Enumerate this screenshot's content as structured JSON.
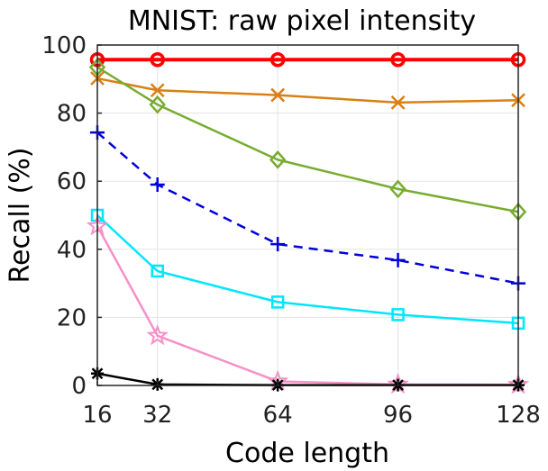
{
  "chart_data": {
    "type": "line",
    "title": "MNIST: raw pixel intensity",
    "xlabel": "Code length",
    "ylabel": "Recall (%)",
    "x": [
      16,
      32,
      64,
      96,
      128
    ],
    "xlim": [
      16,
      128
    ],
    "ylim": [
      0,
      100
    ],
    "xticks": [
      16,
      32,
      64,
      96,
      128
    ],
    "yticks": [
      0,
      20,
      40,
      60,
      80,
      100
    ],
    "grid": true,
    "series": [
      {
        "color": "#ff0000",
        "marker": "circle",
        "dash": "solid",
        "values": [
          95.7,
          95.7,
          95.7,
          95.7,
          95.7
        ]
      },
      {
        "color": "#d98014",
        "marker": "x",
        "dash": "solid",
        "values": [
          90.2,
          86.7,
          85.3,
          83.1,
          83.8
        ]
      },
      {
        "color": "#77ac30",
        "marker": "diamond",
        "dash": "solid",
        "values": [
          93.5,
          82.5,
          66.3,
          57.7,
          51.0
        ]
      },
      {
        "color": "#0000dd",
        "marker": "plus",
        "dash": "dashed",
        "values": [
          74.3,
          59.0,
          41.5,
          36.8,
          30.0
        ]
      },
      {
        "color": "#00e6ff",
        "marker": "square",
        "dash": "solid",
        "values": [
          50.0,
          33.6,
          24.5,
          20.8,
          18.3
        ]
      },
      {
        "color": "#f78fc8",
        "marker": "star",
        "dash": "solid",
        "values": [
          46.8,
          14.6,
          1.2,
          0.3,
          0.2
        ]
      },
      {
        "color": "#000000",
        "marker": "asterisk",
        "dash": "solid",
        "values": [
          3.5,
          0.3,
          0.1,
          0.1,
          0.1
        ]
      }
    ]
  }
}
